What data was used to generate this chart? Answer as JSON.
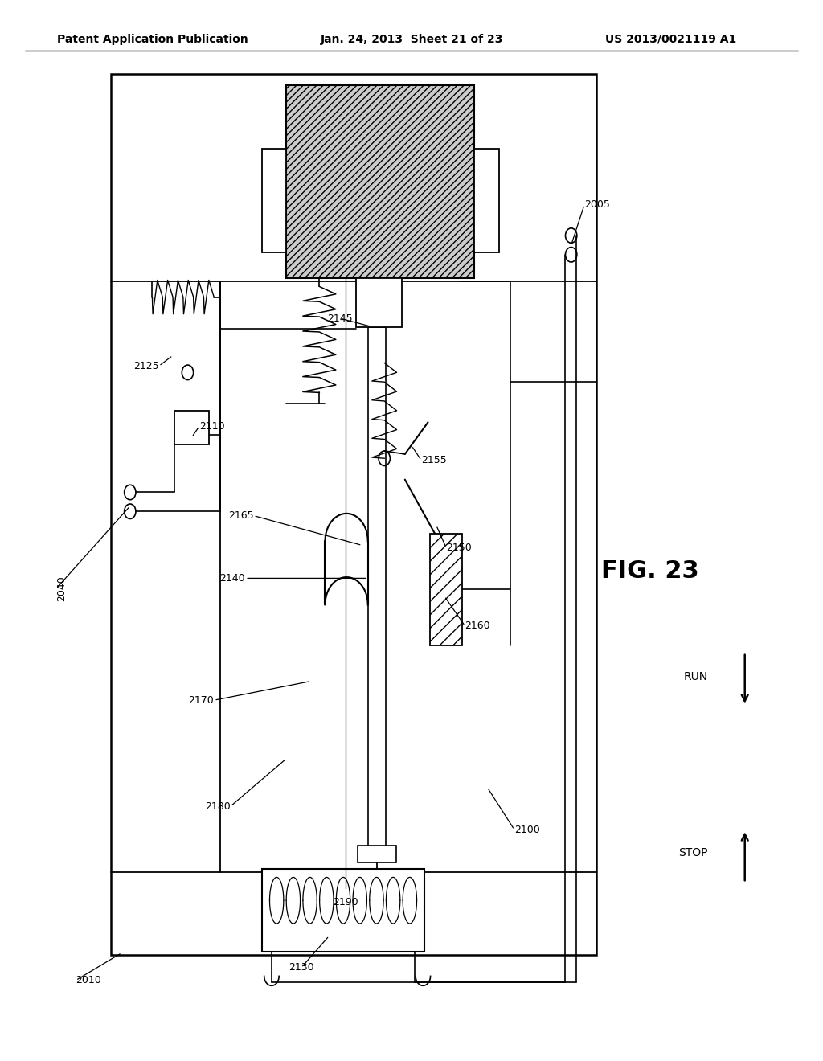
{
  "bg_color": "#ffffff",
  "header_left": "Patent Application Publication",
  "header_center": "Jan. 24, 2013  Sheet 21 of 23",
  "header_right": "US 2013/0021119 A1",
  "fig_label": "FIG. 23"
}
